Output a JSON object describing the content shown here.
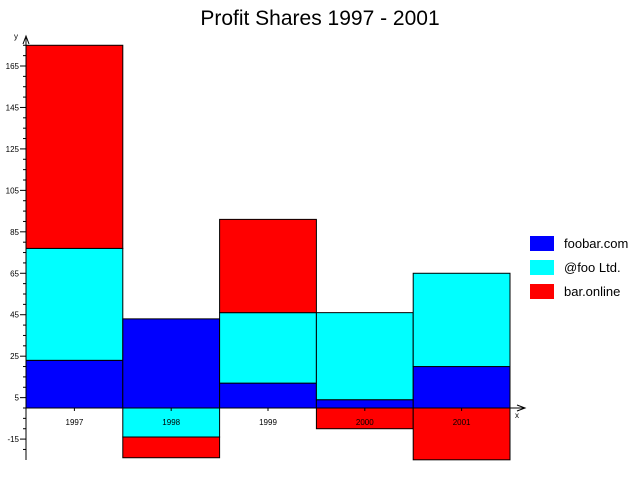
{
  "chart_data": {
    "type": "bar",
    "stacked": true,
    "title": "Profit Shares 1997 - 2001",
    "xlabel": "x",
    "ylabel": "y",
    "categories": [
      "1997",
      "1998",
      "1999",
      "2000",
      "2001"
    ],
    "y_ticks": [
      165,
      145,
      125,
      105,
      85,
      65,
      45,
      25,
      5,
      -15
    ],
    "ylim": [
      -24,
      175
    ],
    "grid": false,
    "legend_position": "right",
    "series": [
      {
        "name": "foobar.com",
        "color": "#0000ff",
        "values": [
          23,
          43,
          12,
          4,
          20
        ]
      },
      {
        "name": "@foo Ltd.",
        "color": "#00ffff",
        "values": [
          54,
          -14,
          34,
          42,
          45
        ]
      },
      {
        "name": "bar.online",
        "color": "#ff0000",
        "values": [
          98,
          -10,
          45,
          -10,
          -25
        ]
      }
    ]
  }
}
